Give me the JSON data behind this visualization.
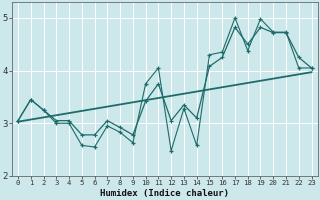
{
  "xlabel": "Humidex (Indice chaleur)",
  "bg_color": "#cce8ea",
  "line_color": "#1e6b6b",
  "grid_color": "#ffffff",
  "xlim": [
    -0.5,
    23.5
  ],
  "ylim": [
    2.0,
    5.3
  ],
  "yticks": [
    2,
    3,
    4,
    5
  ],
  "xticks": [
    0,
    1,
    2,
    3,
    4,
    5,
    6,
    7,
    8,
    9,
    10,
    11,
    12,
    13,
    14,
    15,
    16,
    17,
    18,
    19,
    20,
    21,
    22,
    23
  ],
  "noisy_x": [
    0,
    1,
    2,
    3,
    4,
    5,
    6,
    7,
    8,
    9,
    10,
    11,
    12,
    13,
    14,
    15,
    16,
    17,
    18,
    19,
    20,
    21,
    22,
    23
  ],
  "noisy_y": [
    3.05,
    3.45,
    3.25,
    3.0,
    3.0,
    2.58,
    2.55,
    2.95,
    2.83,
    2.63,
    3.75,
    4.05,
    2.48,
    3.28,
    2.58,
    4.3,
    4.35,
    5.0,
    4.38,
    4.98,
    4.73,
    4.73,
    4.05,
    4.05
  ],
  "smooth_x": [
    0,
    1,
    2,
    3,
    4,
    5,
    6,
    7,
    8,
    9,
    10,
    11,
    12,
    13,
    14,
    15,
    16,
    17,
    18,
    19,
    20,
    21,
    22,
    23
  ],
  "smooth_y": [
    3.05,
    3.45,
    3.25,
    3.05,
    3.05,
    2.78,
    2.78,
    3.05,
    2.92,
    2.78,
    3.42,
    3.75,
    3.05,
    3.35,
    3.1,
    4.08,
    4.25,
    4.82,
    4.5,
    4.82,
    4.72,
    4.72,
    4.25,
    4.05
  ],
  "trend_x": [
    0,
    23
  ],
  "trend_y": [
    3.03,
    3.97
  ]
}
